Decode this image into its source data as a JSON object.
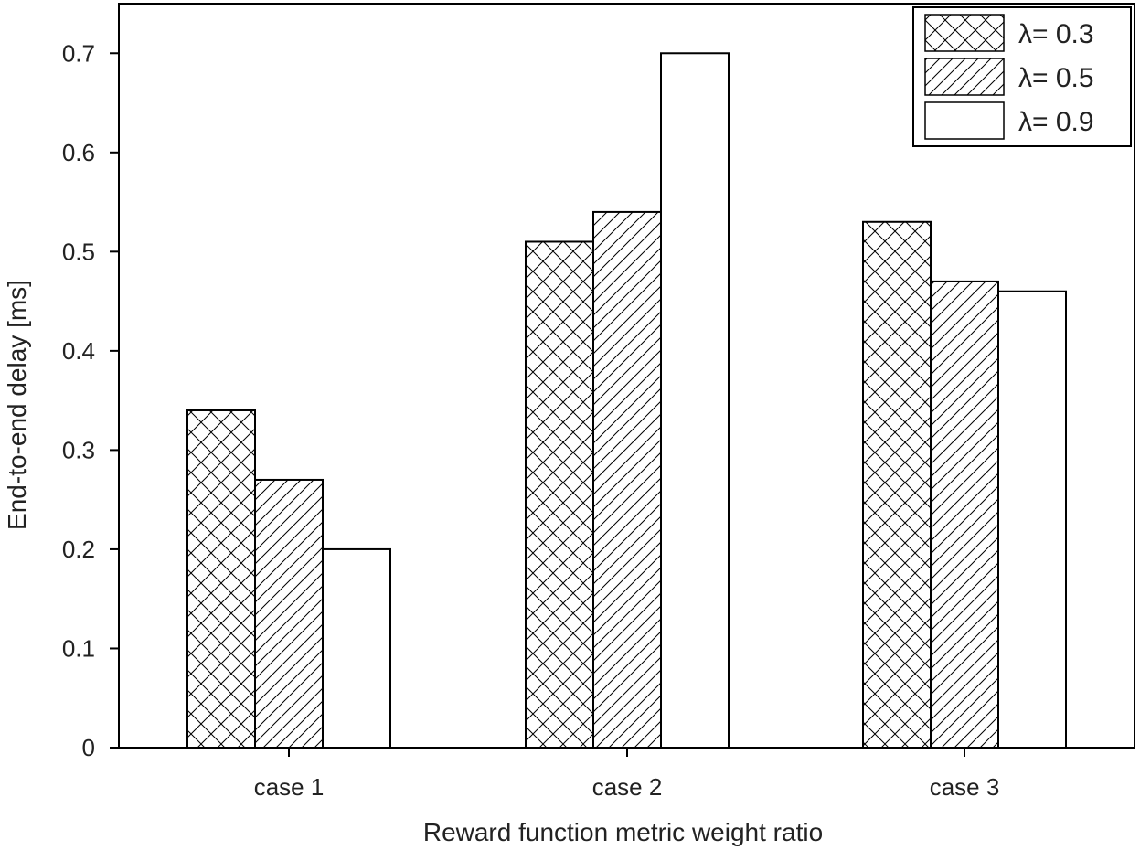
{
  "chart_data": {
    "type": "bar",
    "title": "",
    "xlabel": "Reward function metric weight ratio",
    "ylabel": "End-to-end delay [ms]",
    "categories": [
      "case 1",
      "case 2",
      "case 3"
    ],
    "ylim": [
      0,
      0.75
    ],
    "yticks": [
      0,
      0.1,
      0.2,
      0.3,
      0.4,
      0.5,
      0.6,
      0.7
    ],
    "ytick_labels": [
      "0",
      "0.1",
      "0.2",
      "0.3",
      "0.4",
      "0.5",
      "0.6",
      "0.7"
    ],
    "grid": false,
    "legend_position": "top-right",
    "series": [
      {
        "name": "λ= 0.3",
        "pattern": "crosshatch",
        "values": [
          0.34,
          0.51,
          0.53
        ]
      },
      {
        "name": "λ= 0.5",
        "pattern": "diagonal",
        "values": [
          0.27,
          0.54,
          0.47
        ]
      },
      {
        "name": "λ= 0.9",
        "pattern": "none",
        "values": [
          0.2,
          0.7,
          0.46
        ]
      }
    ],
    "colors": {
      "axis": "#000000",
      "bar_fill": "#ffffff",
      "hatch": "#000000"
    }
  }
}
